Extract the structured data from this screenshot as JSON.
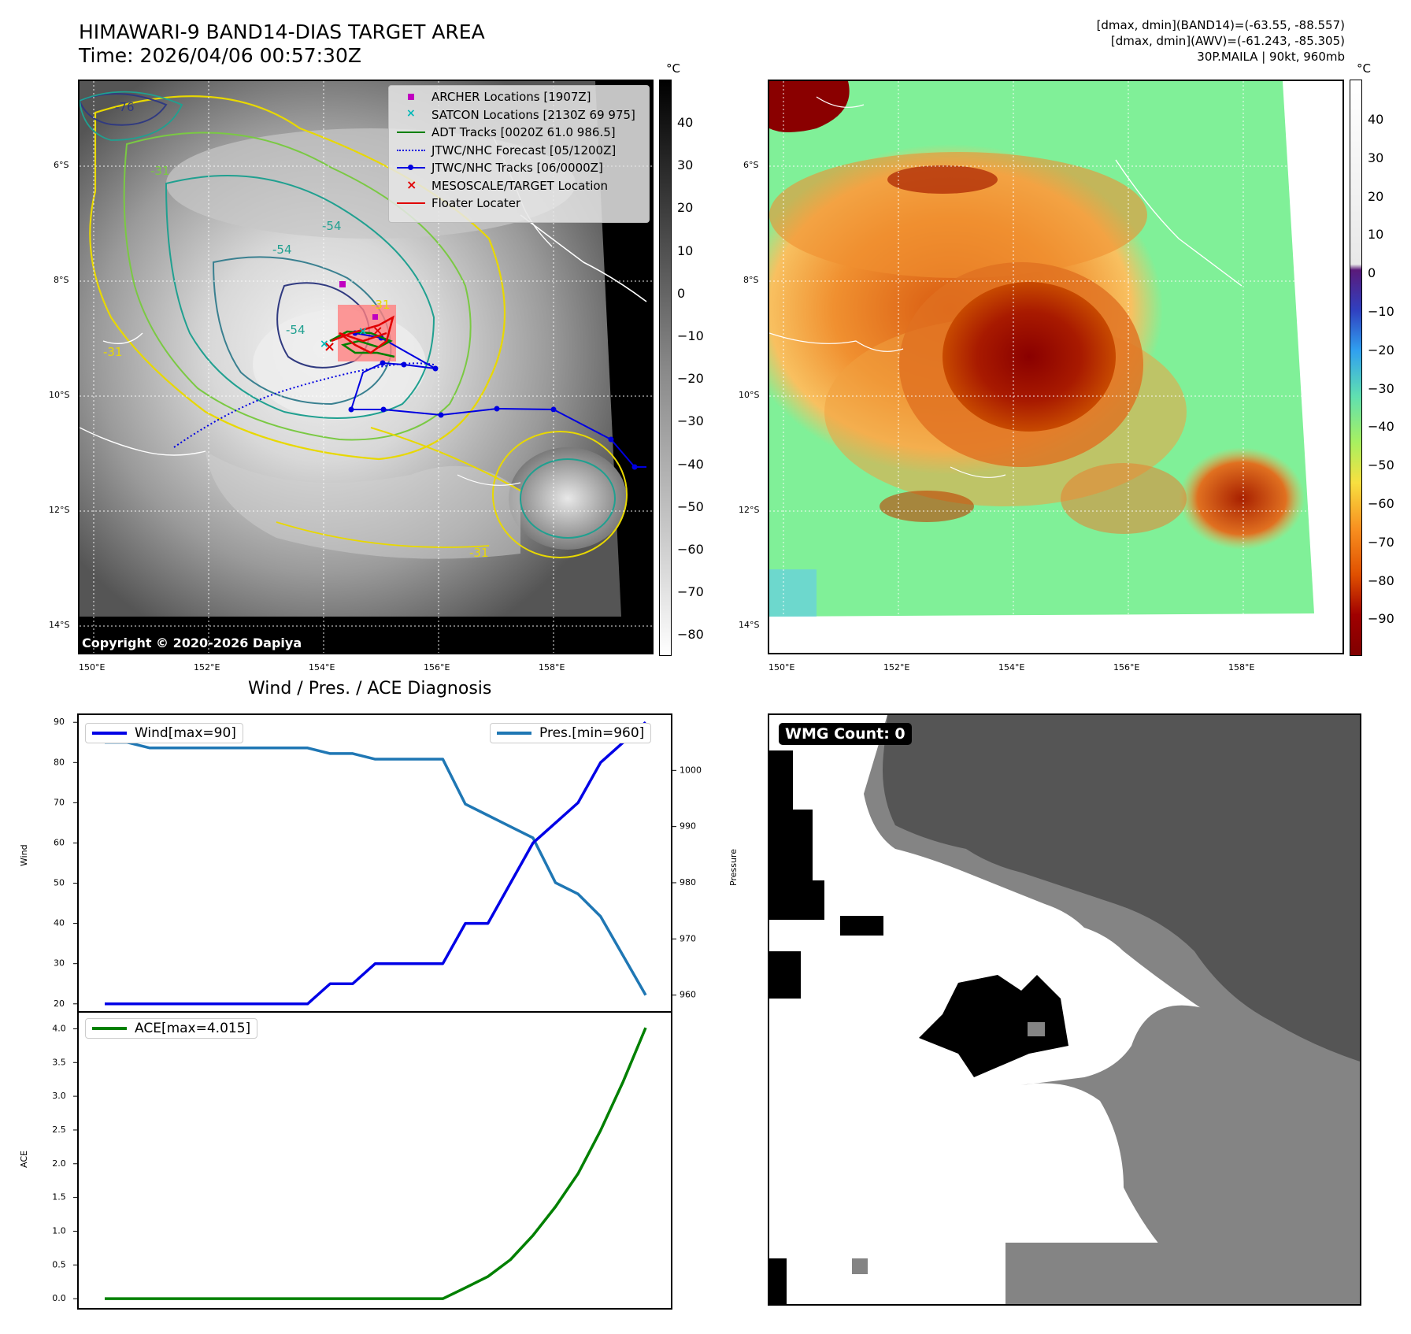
{
  "title": {
    "line1": "HIMAWARI-9 BAND14-DIAS TARGET AREA",
    "line2": "Time: 2026/04/06 00:57:30Z"
  },
  "meta": {
    "line1": "[dmax, dmin](BAND14)=(-63.55, -88.557)",
    "line2": "[dmax, dmin](AWV)=(-61.243, -85.305)",
    "line3": "30P.MAILA | 90kt, 960mb"
  },
  "map": {
    "lat_labels": [
      "6°S",
      "8°S",
      "10°S",
      "12°S",
      "14°S"
    ],
    "lon_labels": [
      "150°E",
      "152°E",
      "154°E",
      "156°E",
      "158°E"
    ],
    "copyright": "Copyright © 2020-2026 Dapiya",
    "contour_labels": [
      "-76",
      "-54",
      "-54",
      "-31",
      "-31",
      "-31",
      "-54",
      "-31"
    ]
  },
  "legend": {
    "items": [
      {
        "label": "ARCHER Locations [1907Z]",
        "symbol": "square-marker",
        "color": "#c000c0"
      },
      {
        "label": "SATCON Locations [2130Z 69 975]",
        "symbol": "x-marker",
        "color": "#00b8b8"
      },
      {
        "label": "ADT Tracks [0020Z 61.0 986.5]",
        "symbol": "line",
        "color": "#008000"
      },
      {
        "label": "JTWC/NHC Forecast [05/1200Z]",
        "symbol": "dotted-line",
        "color": "#0000e0"
      },
      {
        "label": "JTWC/NHC Tracks [06/0000Z]",
        "symbol": "line-dot",
        "color": "#0000e0"
      },
      {
        "label": "MESOSCALE/TARGET Location",
        "symbol": "x-marker",
        "color": "#e00000"
      },
      {
        "label": "Floater Locater",
        "symbol": "line",
        "color": "#e00000"
      }
    ]
  },
  "colorbar_left": {
    "unit": "°C",
    "ticks": [
      "40",
      "30",
      "20",
      "10",
      "0",
      "−10",
      "−20",
      "−30",
      "−40",
      "−50",
      "−60",
      "−70",
      "−80"
    ]
  },
  "colorbar_right": {
    "unit": "°C",
    "ticks": [
      "40",
      "30",
      "20",
      "10",
      "0",
      "−10",
      "−20",
      "−30",
      "−40",
      "−50",
      "−60",
      "−70",
      "−80",
      "−90"
    ]
  },
  "diag_title": "Wind / Pres. / ACE Diagnosis",
  "wmg_label": "WMG Count: 0",
  "chart_data": [
    {
      "type": "line",
      "title": "Wind / Pres. / ACE Diagnosis",
      "ylabel": "Wind",
      "y2label": "Pressure",
      "ylim": [
        18,
        92
      ],
      "y2lim": [
        957,
        1010
      ],
      "yticks": [
        20,
        30,
        40,
        50,
        60,
        70,
        80,
        90
      ],
      "y2ticks": [
        960,
        970,
        980,
        990,
        1000
      ],
      "series": [
        {
          "name": "Wind[max=90]",
          "color": "#0000e6",
          "axis": "left",
          "values": [
            20,
            20,
            20,
            20,
            20,
            20,
            20,
            20,
            20,
            20,
            25,
            25,
            30,
            30,
            30,
            30,
            40,
            40,
            50,
            60,
            65,
            70,
            80,
            85,
            90
          ]
        },
        {
          "name": "Pres.[min=960]",
          "color": "#1f77b4",
          "axis": "right",
          "values": [
            1005,
            1005,
            1004,
            1004,
            1004,
            1004,
            1004,
            1004,
            1004,
            1004,
            1003,
            1003,
            1002,
            1002,
            1002,
            1002,
            994,
            992,
            990,
            988,
            980,
            978,
            974,
            967,
            960
          ]
        }
      ]
    },
    {
      "type": "line",
      "ylabel": "ACE",
      "ylim": [
        -0.15,
        4.25
      ],
      "yticks": [
        "0.0",
        "0.5",
        "1.0",
        "1.5",
        "2.0",
        "2.5",
        "3.0",
        "3.5",
        "4.0"
      ],
      "series": [
        {
          "name": "ACE[max=4.015]",
          "color": "#008000",
          "values": [
            0,
            0,
            0,
            0,
            0,
            0,
            0,
            0,
            0,
            0,
            0,
            0,
            0,
            0,
            0,
            0,
            0.162,
            0.328,
            0.578,
            0.938,
            1.363,
            1.853,
            2.493,
            3.216,
            4.015
          ]
        }
      ]
    }
  ]
}
